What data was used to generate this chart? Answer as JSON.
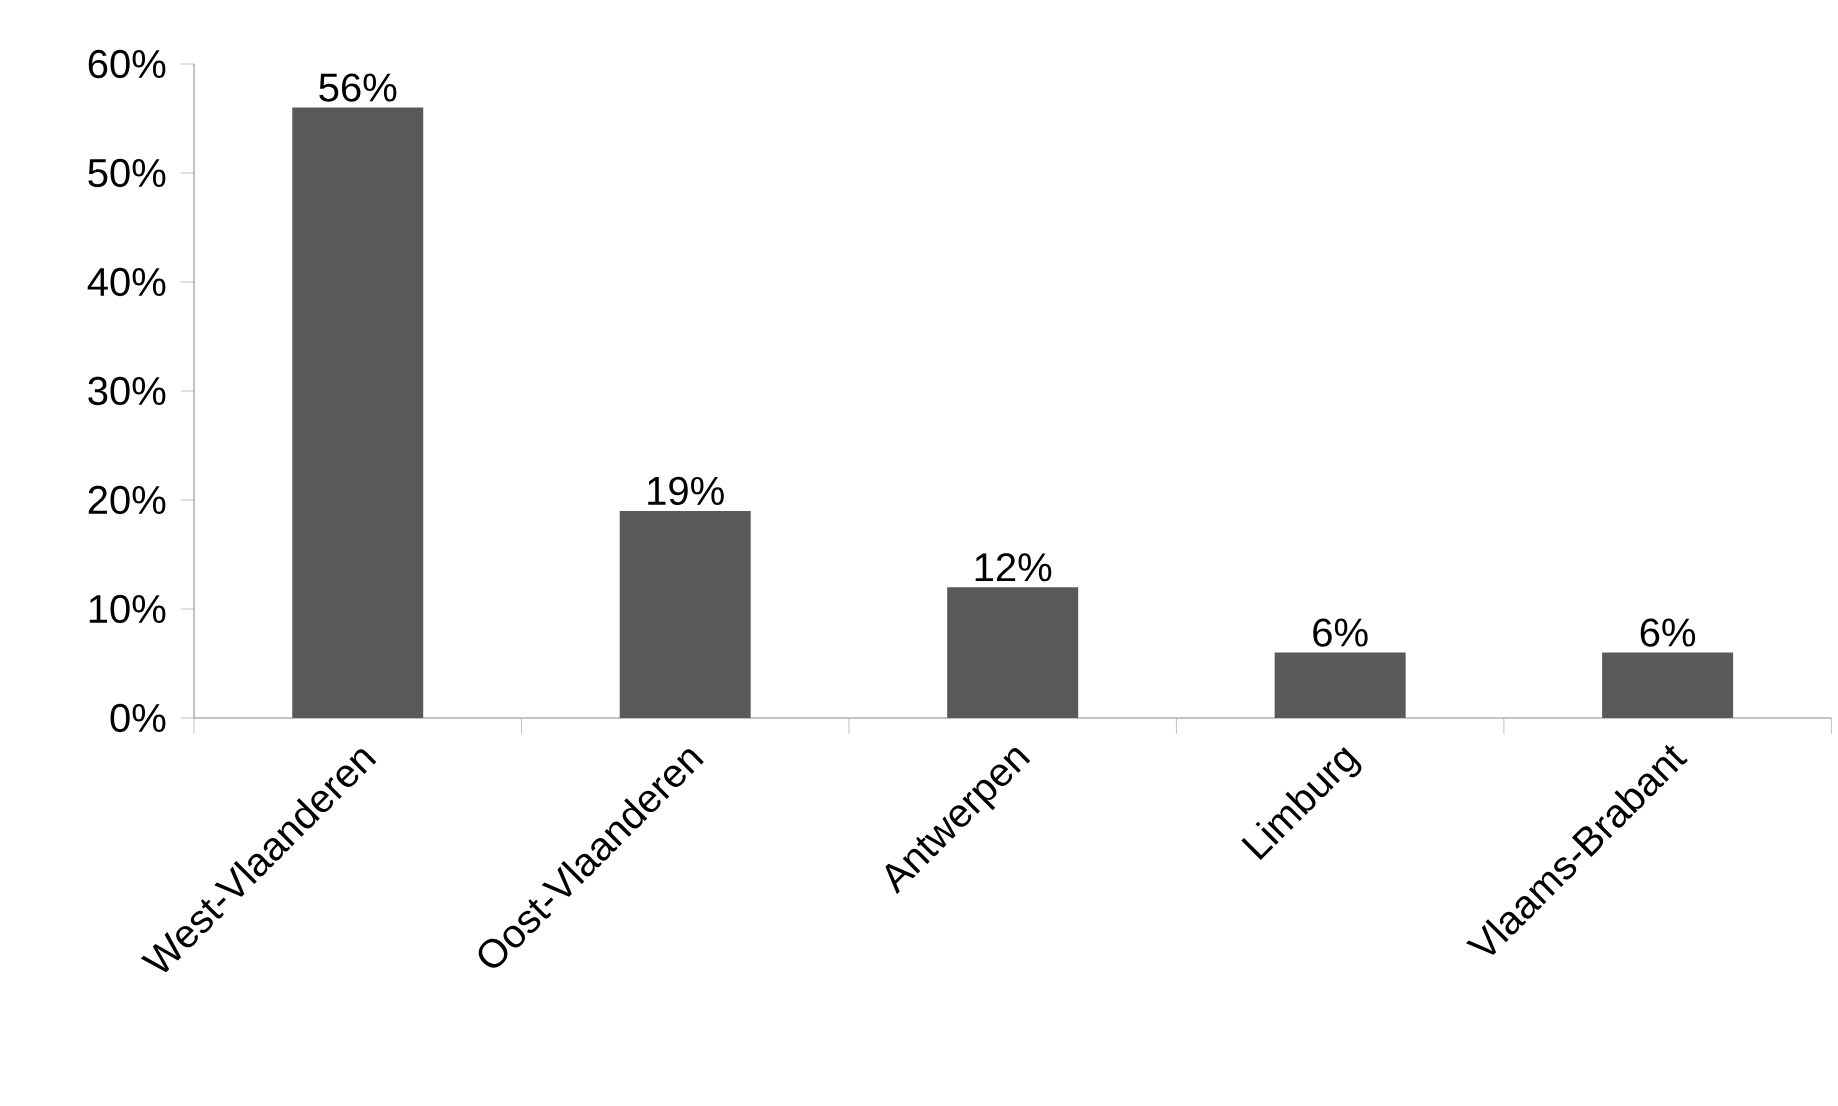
{
  "chart_data": {
    "type": "bar",
    "categories": [
      "West-Vlaanderen",
      "Oost-Vlaanderen",
      "Antwerpen",
      "Limburg",
      "Vlaams-Brabant"
    ],
    "values": [
      56,
      19,
      12,
      6,
      6
    ],
    "value_labels": [
      "56%",
      "19%",
      "12%",
      "6%",
      "6%"
    ],
    "color": "#595959",
    "ylim": [
      0,
      60
    ],
    "yticks": [
      {
        "value": 0,
        "label": "0%"
      },
      {
        "value": 10,
        "label": "10%"
      },
      {
        "value": 20,
        "label": "20%"
      },
      {
        "value": 30,
        "label": "30%"
      },
      {
        "value": 40,
        "label": "40%"
      },
      {
        "value": 50,
        "label": "50%"
      },
      {
        "value": 60,
        "label": "60%"
      }
    ]
  }
}
